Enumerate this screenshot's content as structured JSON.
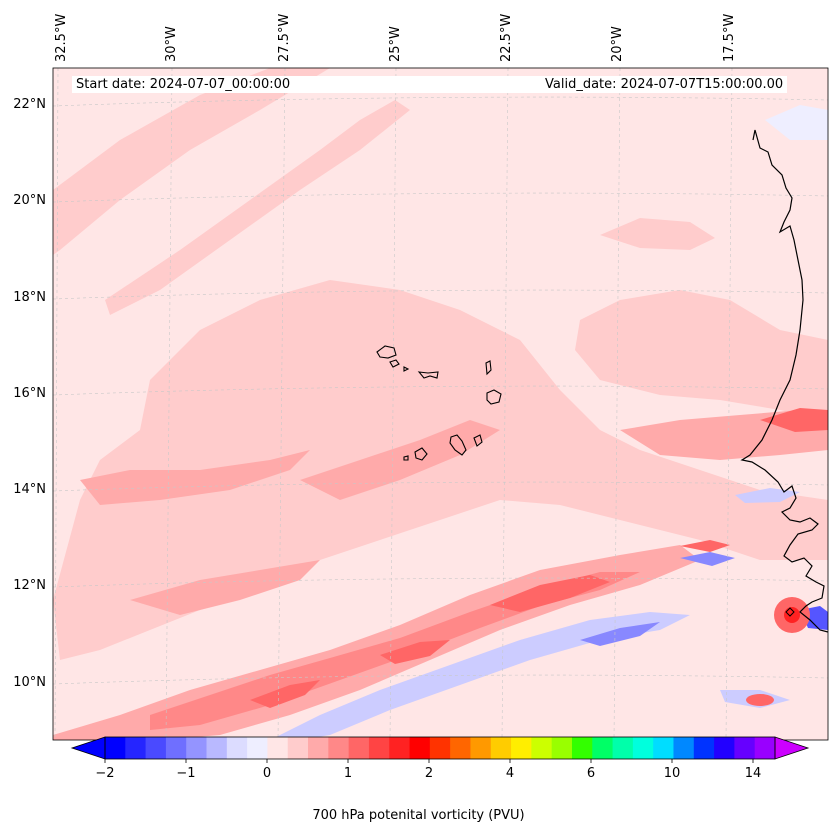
{
  "map": {
    "region": "Cape Verde Islands and West African coast, eastern tropical Atlantic",
    "longitude_labels": [
      "32.5°W",
      "30°W",
      "27.5°W",
      "25°W",
      "22.5°W",
      "20°W",
      "17.5°W"
    ],
    "latitude_labels": [
      "22°N",
      "20°N",
      "18°N",
      "16°N",
      "14°N",
      "12°N",
      "10°N"
    ],
    "start_date": "Start date: 2024-07-07_00:00:00",
    "valid_date": "Valid_date: 2024-07-07T15:00:00.00",
    "field": "700 hPa potential vorticity",
    "gridlines": true,
    "colors": {
      "background": "#ffe6e6",
      "light_red": "#ffcccc",
      "medium_red": "#ffaaaa",
      "strong_red": "#ff6666",
      "intense_red": "#ff3333",
      "light_blue": "#ccccff",
      "medium_blue": "#8888ff",
      "deep_blue": "#5555ff",
      "coastline": "#000000"
    }
  },
  "colorbar": {
    "label": "700 hPa potenital vorticity (PVU)",
    "tick_labels": [
      "−2",
      "−1",
      "0",
      "1",
      "2",
      "4",
      "6",
      "10",
      "14"
    ],
    "colors": [
      "#0000ff",
      "#2525ff",
      "#4a4aff",
      "#6f6fff",
      "#9494ff",
      "#b9b9ff",
      "#dcdcff",
      "#eeeeff",
      "#ffe6e6",
      "#ffcccc",
      "#ffaaaa",
      "#ff8888",
      "#ff6666",
      "#ff4444",
      "#ff2222",
      "#ff0000",
      "#ff3300",
      "#ff6600",
      "#ff9900",
      "#ffcc00",
      "#ffee00",
      "#ccff00",
      "#99ff00",
      "#33ff00",
      "#00ff66",
      "#00ffaa",
      "#00ffdd",
      "#00ddff",
      "#0088ff",
      "#0033ff",
      "#2200ff",
      "#6600ff",
      "#9900ff"
    ],
    "extend_low_color": "#0000ff",
    "extend_high_color": "#cc00ff"
  }
}
